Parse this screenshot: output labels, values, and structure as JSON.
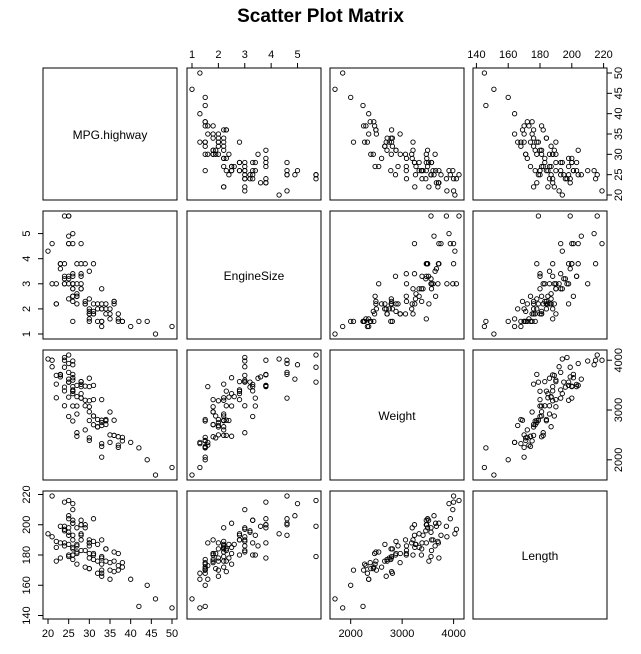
{
  "chart_data": {
    "type": "scatter",
    "title": "Scatter Plot Matrix",
    "variables": [
      "MPG.highway",
      "EngineSize",
      "Weight",
      "Length"
    ],
    "axes": {
      "MPG.highway": {
        "range": [
          20,
          50
        ],
        "ticks": [
          "20",
          "25",
          "30",
          "35",
          "40",
          "45",
          "50"
        ]
      },
      "EngineSize": {
        "range": [
          1.0,
          5.7
        ],
        "ticks": [
          "1",
          "2",
          "3",
          "4",
          "5"
        ]
      },
      "Weight": {
        "range": [
          1695,
          4105
        ],
        "ticks": [
          "2000",
          "3000",
          "4000"
        ]
      },
      "Length": {
        "range": [
          141,
          219
        ],
        "ticks": [
          "140",
          "160",
          "180",
          "200",
          "220"
        ]
      }
    },
    "point_style": "open-circle",
    "grid": false,
    "points": [
      [
        31,
        1.8,
        2705,
        177
      ],
      [
        25,
        3.2,
        3560,
        195
      ],
      [
        26,
        2.8,
        3375,
        180
      ],
      [
        26,
        2.8,
        3405,
        193
      ],
      [
        30,
        3.5,
        3640,
        186
      ],
      [
        31,
        2.2,
        2880,
        189
      ],
      [
        28,
        3.8,
        3470,
        200
      ],
      [
        25,
        5.7,
        4105,
        216
      ],
      [
        27,
        3.8,
        3495,
        198
      ],
      [
        25,
        4.9,
        3620,
        206
      ],
      [
        25,
        4.6,
        3935,
        204
      ],
      [
        36,
        2.2,
        2490,
        182
      ],
      [
        34,
        2.2,
        2785,
        184
      ],
      [
        28,
        3.4,
        3240,
        193
      ],
      [
        29,
        2.2,
        3195,
        198
      ],
      [
        23,
        3.8,
        3715,
        178
      ],
      [
        20,
        4.3,
        4025,
        194
      ],
      [
        26,
        5.0,
        3910,
        214
      ],
      [
        25,
        5.7,
        3560,
        179
      ],
      [
        28,
        3.3,
        3515,
        203
      ],
      [
        28,
        3.0,
        3570,
        183
      ],
      [
        26,
        3.3,
        3470,
        203
      ],
      [
        33,
        1.5,
        2270,
        174
      ],
      [
        29,
        2.2,
        2600,
        172
      ],
      [
        27,
        2.5,
        3080,
        181
      ],
      [
        21,
        3.0,
        3870,
        192
      ],
      [
        27,
        2.5,
        2475,
        174
      ],
      [
        24,
        3.0,
        3085,
        186
      ],
      [
        33,
        1.5,
        2055,
        170
      ],
      [
        24,
        3.3,
        3385,
        188
      ],
      [
        33,
        1.3,
        2325,
        168
      ],
      [
        30,
        1.9,
        2440,
        171
      ],
      [
        33,
        2.0,
        2690,
        166
      ],
      [
        32,
        2.2,
        2665,
        187
      ],
      [
        30,
        2.4,
        2790,
        178
      ],
      [
        30,
        1.8,
        2965,
        181
      ],
      [
        38,
        1.5,
        2450,
        172
      ],
      [
        38,
        1.5,
        2380,
        175
      ],
      [
        37,
        1.5,
        2250,
        170
      ],
      [
        26,
        4.6,
        3715,
        201
      ],
      [
        24,
        3.8,
        4000,
        215
      ],
      [
        26,
        2.5,
        3330,
        185
      ],
      [
        25,
        4.6,
        3755,
        193
      ],
      [
        24,
        3.0,
        4055,
        197
      ],
      [
        26,
        3.0,
        3985,
        210
      ],
      [
        23,
        3.8,
        3705,
        188
      ],
      [
        26,
        2.3,
        3380,
        184
      ],
      [
        46,
        1.0,
        1695,
        151
      ],
      [
        42,
        1.5,
        2240,
        146
      ],
      [
        35,
        1.6,
        2350,
        164
      ],
      [
        37,
        1.6,
        2295,
        173
      ],
      [
        36,
        2.3,
        2490,
        176
      ],
      [
        34,
        2.0,
        2810,
        184
      ],
      [
        33,
        2.2,
        2795,
        179
      ],
      [
        27,
        2.6,
        3270,
        187
      ],
      [
        26,
        1.5,
        2780,
        177
      ],
      [
        25,
        3.3,
        2870,
        180
      ],
      [
        30,
        1.8,
        3065,
        190
      ],
      [
        35,
        2.0,
        2500,
        170
      ],
      [
        32,
        2.0,
        2660,
        176
      ],
      [
        33,
        2.8,
        3210,
        190
      ],
      [
        22,
        3.0,
        3695,
        189
      ],
      [
        31,
        3.8,
        3495,
        204
      ],
      [
        30,
        1.6,
        3470,
        188
      ],
      [
        26,
        2.5,
        3650,
        201
      ],
      [
        24,
        3.2,
        3460,
        196
      ],
      [
        28,
        2.8,
        3570,
        190
      ],
      [
        23,
        3.6,
        3665,
        199
      ],
      [
        25,
        3.0,
        3560,
        198
      ],
      [
        34,
        1.8,
        2710,
        176
      ],
      [
        37,
        1.8,
        2465,
        181
      ],
      [
        29,
        2.3,
        3085,
        183
      ],
      [
        30,
        1.5,
        2390,
        171
      ],
      [
        24,
        5.7,
        3860,
        199
      ],
      [
        50,
        1.3,
        1845,
        145
      ],
      [
        36,
        2.3,
        2795,
        169
      ],
      [
        26,
        3.4,
        3080,
        180
      ],
      [
        28,
        4.6,
        3240,
        200
      ],
      [
        27,
        3.0,
        2545,
        182
      ],
      [
        33,
        2.0,
        2750,
        178
      ],
      [
        29,
        3.8,
        3480,
        200
      ],
      [
        27,
        2.2,
        2920,
        186
      ],
      [
        31,
        1.9,
        2880,
        181
      ],
      [
        30,
        2.0,
        3185,
        188
      ],
      [
        35,
        1.8,
        2960,
        175
      ],
      [
        26,
        3.0,
        3600,
        190
      ],
      [
        28,
        2.8,
        3330,
        194
      ],
      [
        25,
        2.4,
        3260,
        187
      ],
      [
        31,
        1.8,
        3210,
        180
      ],
      [
        32,
        1.5,
        2810,
        168
      ],
      [
        22,
        2.2,
        3520,
        176
      ],
      [
        44,
        1.5,
        2000,
        160
      ],
      [
        40,
        1.3,
        2350,
        164
      ],
      [
        21,
        4.6,
        4000,
        219
      ],
      [
        22,
        2.2,
        3245,
        185
      ]
    ]
  }
}
